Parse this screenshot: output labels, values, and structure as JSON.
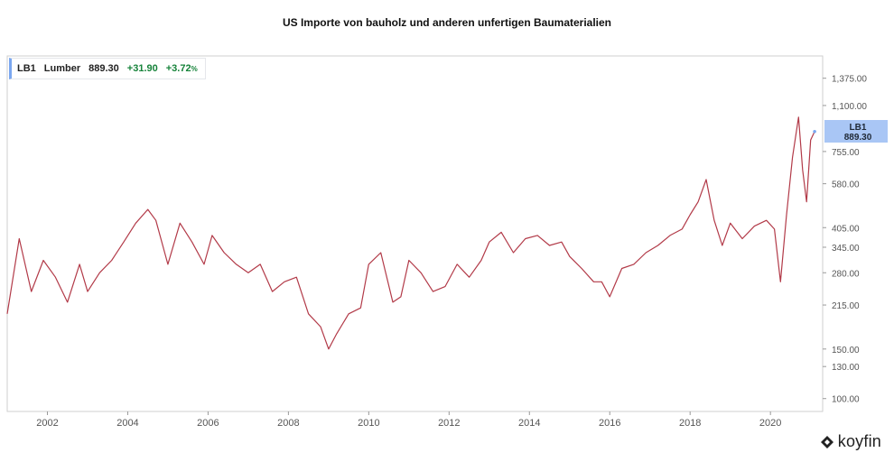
{
  "title": "US Importe von bauholz und anderen unfertigen Baumaterialien",
  "legend": {
    "ticker": "LB1",
    "name": "Lumber",
    "last": "889.30",
    "change": "+31.90",
    "change_pct": "+3.72",
    "pct_sign": "%"
  },
  "price_tag": {
    "ticker": "LB1",
    "value": "889.30"
  },
  "brand": {
    "name": "koyfin",
    "icon": "koyfin-logo-icon"
  },
  "colors": {
    "line": "#b23a48",
    "accent": "#7aa7f0",
    "price_tag_bg": "#a9c6f5",
    "up": "#16833a"
  },
  "chart_data": {
    "type": "line",
    "title": "US Importe von bauholz und anderen unfertigen Baumaterialien",
    "xlabel": "",
    "ylabel": "",
    "y_scale": "log",
    "grid": false,
    "legend_position": "top-left",
    "xlim": [
      2001.0,
      2021.3
    ],
    "ylim": [
      90,
      1650
    ],
    "x_ticks": [
      "2002",
      "2004",
      "2006",
      "2008",
      "2010",
      "2012",
      "2014",
      "2016",
      "2018",
      "2020"
    ],
    "y_ticks": [
      "1,375.00",
      "1,100.00",
      "755.00",
      "580.00",
      "405.00",
      "345.00",
      "280.00",
      "215.00",
      "150.00",
      "130.00",
      "100.00"
    ],
    "series": [
      {
        "name": "LB1",
        "x": [
          2001.0,
          2001.3,
          2001.6,
          2001.9,
          2002.2,
          2002.5,
          2002.8,
          2003.0,
          2003.3,
          2003.6,
          2003.9,
          2004.2,
          2004.5,
          2004.7,
          2005.0,
          2005.3,
          2005.6,
          2005.9,
          2006.1,
          2006.4,
          2006.7,
          2007.0,
          2007.3,
          2007.6,
          2007.9,
          2008.2,
          2008.5,
          2008.8,
          2009.0,
          2009.2,
          2009.5,
          2009.8,
          2010.0,
          2010.3,
          2010.6,
          2010.8,
          2011.0,
          2011.3,
          2011.6,
          2011.9,
          2012.2,
          2012.5,
          2012.8,
          2013.0,
          2013.3,
          2013.6,
          2013.9,
          2014.2,
          2014.5,
          2014.8,
          2015.0,
          2015.3,
          2015.6,
          2015.8,
          2016.0,
          2016.3,
          2016.6,
          2016.9,
          2017.2,
          2017.5,
          2017.8,
          2018.0,
          2018.2,
          2018.4,
          2018.6,
          2018.8,
          2019.0,
          2019.3,
          2019.6,
          2019.9,
          2020.1,
          2020.25,
          2020.4,
          2020.55,
          2020.7,
          2020.8,
          2020.9,
          2021.0,
          2021.1
        ],
        "values": [
          200,
          370,
          240,
          310,
          270,
          220,
          300,
          240,
          280,
          310,
          360,
          420,
          470,
          430,
          300,
          420,
          360,
          300,
          380,
          330,
          300,
          280,
          300,
          240,
          260,
          270,
          200,
          180,
          150,
          170,
          200,
          210,
          300,
          330,
          220,
          230,
          310,
          280,
          240,
          250,
          300,
          270,
          310,
          360,
          390,
          330,
          370,
          380,
          350,
          360,
          320,
          290,
          260,
          260,
          230,
          290,
          300,
          330,
          350,
          380,
          400,
          450,
          500,
          600,
          430,
          350,
          420,
          370,
          410,
          430,
          400,
          260,
          450,
          720,
          1000,
          650,
          500,
          830,
          889
        ]
      }
    ]
  }
}
